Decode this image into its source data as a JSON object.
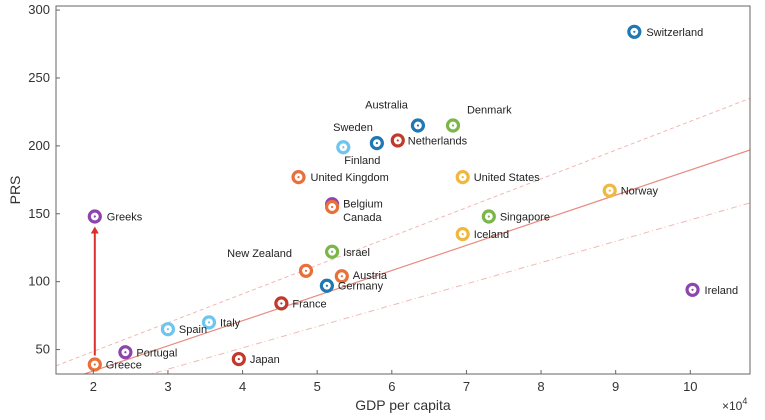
{
  "chart_data": {
    "type": "scatter",
    "title": "",
    "xlabel": "GDP per capita",
    "ylabel": "PRS",
    "x_exponent_label": "×10^4",
    "xlim": [
      1.5,
      10.8
    ],
    "ylim": [
      32,
      303
    ],
    "x_ticks": [
      2,
      3,
      4,
      5,
      6,
      7,
      8,
      9,
      10
    ],
    "y_ticks": [
      50,
      100,
      150,
      200,
      250,
      300
    ],
    "grid": false,
    "points": [
      {
        "label": "Switzerland",
        "x": 9.25,
        "y": 284,
        "color": "#1f77b4"
      },
      {
        "label": "Australia",
        "x": 6.35,
        "y": 215,
        "color": "#1f77b4"
      },
      {
        "label": "Denmark",
        "x": 6.82,
        "y": 215,
        "color": "#7ab648"
      },
      {
        "label": "Sweden",
        "x": 5.8,
        "y": 202,
        "color": "#1f77b4"
      },
      {
        "label": "Netherlands",
        "x": 6.08,
        "y": 204,
        "color": "#c0392b"
      },
      {
        "label": "Finland",
        "x": 5.35,
        "y": 199,
        "color": "#6ec6f0"
      },
      {
        "label": "United Kingdom",
        "x": 4.75,
        "y": 177,
        "color": "#e8703a"
      },
      {
        "label": "United States",
        "x": 6.95,
        "y": 177,
        "color": "#f0b840"
      },
      {
        "label": "Norway",
        "x": 8.92,
        "y": 167,
        "color": "#f0b840"
      },
      {
        "label": "Belgium",
        "x": 5.2,
        "y": 157,
        "color": "#8e44ad"
      },
      {
        "label": "Canada",
        "x": 5.2,
        "y": 155,
        "color": "#e8703a"
      },
      {
        "label": "Singapore",
        "x": 7.3,
        "y": 148,
        "color": "#7ab648"
      },
      {
        "label": "Iceland",
        "x": 6.95,
        "y": 135,
        "color": "#f0b840"
      },
      {
        "label": "Greeks",
        "x": 2.02,
        "y": 148,
        "color": "#8e44ad"
      },
      {
        "label": "Israel",
        "x": 5.2,
        "y": 122,
        "color": "#7ab648"
      },
      {
        "label": "New Zealand",
        "x": 4.85,
        "y": 108,
        "color": "#e8703a"
      },
      {
        "label": "Austria",
        "x": 5.33,
        "y": 104,
        "color": "#e8703a"
      },
      {
        "label": "Germany",
        "x": 5.13,
        "y": 97,
        "color": "#1f77b4"
      },
      {
        "label": "France",
        "x": 4.52,
        "y": 84,
        "color": "#c0392b"
      },
      {
        "label": "Ireland",
        "x": 10.03,
        "y": 94,
        "color": "#8e44ad"
      },
      {
        "label": "Italy",
        "x": 3.55,
        "y": 70,
        "color": "#6ec6f0"
      },
      {
        "label": "Spain",
        "x": 3.0,
        "y": 65,
        "color": "#6ec6f0"
      },
      {
        "label": "Portugal",
        "x": 2.43,
        "y": 48,
        "color": "#8e44ad"
      },
      {
        "label": "Greece",
        "x": 2.02,
        "y": 39,
        "color": "#e8703a"
      },
      {
        "label": "Japan",
        "x": 3.95,
        "y": 43,
        "color": "#c0392b"
      }
    ],
    "fit_lines": [
      {
        "style": "solid",
        "color": "#e88a80",
        "x": [
          1.5,
          10.8
        ],
        "y": [
          25,
          197
        ]
      },
      {
        "style": "dashed",
        "color": "#f2b8b2",
        "x": [
          1.5,
          10.8
        ],
        "y": [
          38,
          235
        ]
      },
      {
        "style": "dashdot",
        "color": "#f2b8b2",
        "x": [
          1.5,
          10.8
        ],
        "y": [
          12,
          158
        ]
      }
    ],
    "arrow": {
      "from": {
        "x": 2.02,
        "y": 39
      },
      "to": {
        "x": 2.02,
        "y": 148
      },
      "color": "#d9312b"
    }
  }
}
